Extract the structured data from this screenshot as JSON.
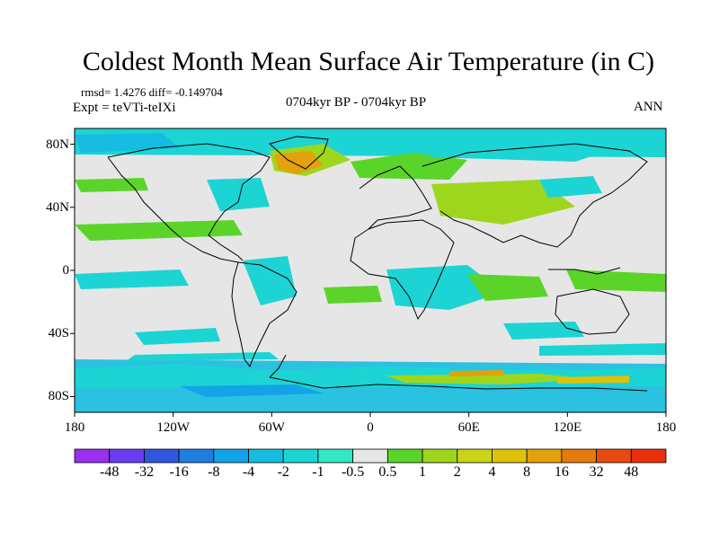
{
  "title": "Coldest Month Mean Surface Air Temperature (in C)",
  "stats_line": "rmsd= 1.4276 diff= -0.149704",
  "experiment_line": "Expt = teVTi-teIXi",
  "period_line": "0704kyr BP - 0704kyr BP",
  "season": "ANN",
  "map": {
    "projection": "equirectangular",
    "lon_range": [
      -180,
      180
    ],
    "lat_range": [
      -90,
      90
    ],
    "y_ticks": [
      {
        "lat": 80,
        "label": "80N"
      },
      {
        "lat": 40,
        "label": "40N"
      },
      {
        "lat": 0,
        "label": "0"
      },
      {
        "lat": -40,
        "label": "40S"
      },
      {
        "lat": -80,
        "label": "80S"
      }
    ],
    "x_ticks": [
      {
        "lon": -180,
        "label": "180"
      },
      {
        "lon": -120,
        "label": "120W"
      },
      {
        "lon": -60,
        "label": "60W"
      },
      {
        "lon": 0,
        "label": "0"
      },
      {
        "lon": 60,
        "label": "60E"
      },
      {
        "lon": 120,
        "label": "120E"
      },
      {
        "lon": 180,
        "label": "180"
      }
    ],
    "background_color": "#e6e6e6",
    "coastline_color": "#000000"
  },
  "colorbar": {
    "labels": [
      "-48",
      "-32",
      "-16",
      "-8",
      "-4",
      "-2",
      "-1",
      "-0.5",
      "0.5",
      "1",
      "2",
      "4",
      "8",
      "16",
      "32",
      "48"
    ],
    "colors": [
      "#9b30f0",
      "#6a3cf0",
      "#2f57e0",
      "#1e7fe0",
      "#14a3e8",
      "#16bde0",
      "#1cd4d4",
      "#33e6c4",
      "#e6e6e6",
      "#5bd42a",
      "#9ed61e",
      "#c8d414",
      "#dcc20c",
      "#e3a10c",
      "#e67a0c",
      "#e84a10",
      "#e8300c"
    ]
  }
}
